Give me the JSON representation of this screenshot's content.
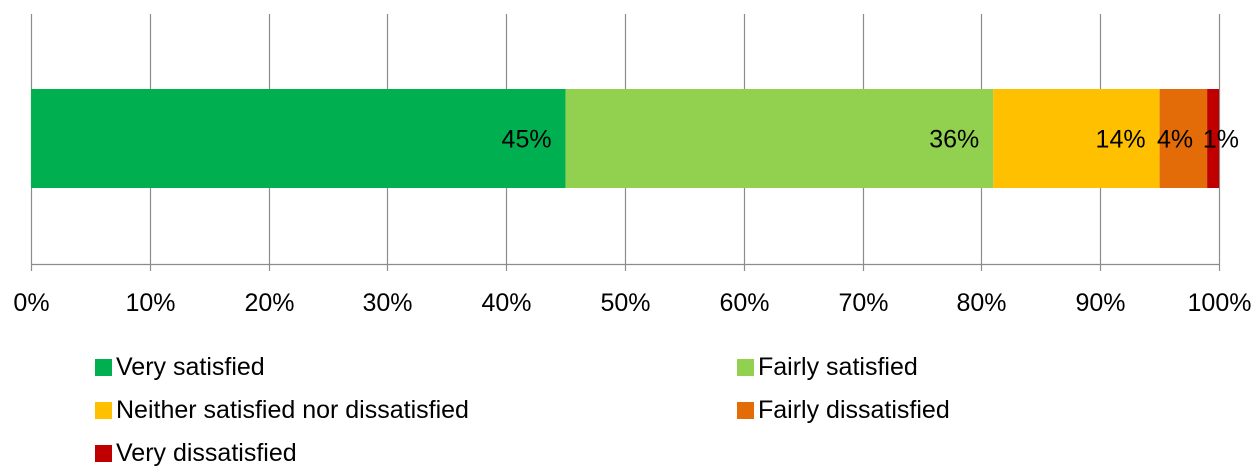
{
  "chart_data": {
    "type": "bar",
    "orientation": "horizontal",
    "stacked": true,
    "categories": [
      ""
    ],
    "series": [
      {
        "name": "Very satisfied",
        "values": [
          45
        ],
        "label": "45%",
        "color": "#00b050"
      },
      {
        "name": "Fairly satisfied",
        "values": [
          36
        ],
        "label": "36%",
        "color": "#92d050"
      },
      {
        "name": "Neither satisfied nor dissatisfied",
        "values": [
          14
        ],
        "label": "14%",
        "color": "#ffc000"
      },
      {
        "name": "Fairly dissatisfied",
        "values": [
          4
        ],
        "label": "4%",
        "color": "#e36c09"
      },
      {
        "name": "Very dissatisfied",
        "values": [
          1
        ],
        "label": "1%",
        "color": "#c00000"
      }
    ],
    "xlim": [
      0,
      100
    ],
    "xticks": [
      "0%",
      "10%",
      "20%",
      "30%",
      "40%",
      "50%",
      "60%",
      "70%",
      "80%",
      "90%",
      "100%"
    ],
    "title": "",
    "xlabel": "",
    "ylabel": "",
    "grid": "vertical",
    "legend_position": "bottom"
  }
}
